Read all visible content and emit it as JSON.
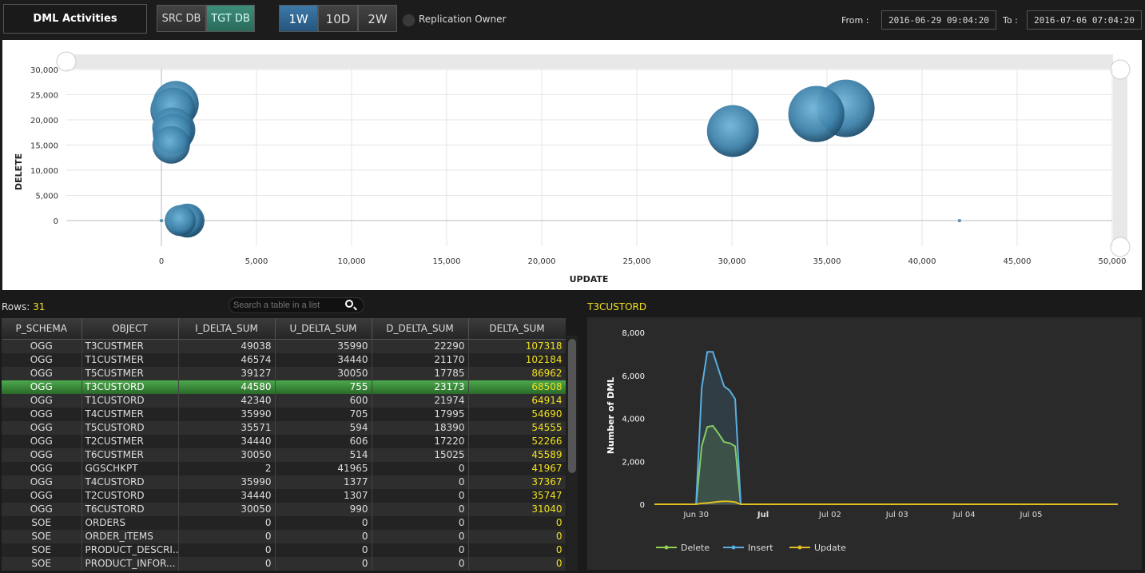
{
  "header": {
    "title": "DML Activities",
    "db_tabs": [
      {
        "label": "SRC DB",
        "active": false
      },
      {
        "label": "TGT DB",
        "active": true
      }
    ],
    "range_tabs": [
      {
        "label": "1W",
        "active": true
      },
      {
        "label": "10D",
        "active": false
      },
      {
        "label": "2W",
        "active": false
      }
    ],
    "replication_owner_label": "Replication Owner",
    "from_label": "From :",
    "from_value": "2016-06-29 09:04:20",
    "to_label": "To :",
    "to_value": "2016-07-06 07:04:20"
  },
  "chart_data": [
    {
      "type": "scatter",
      "xlabel": "UPDATE",
      "ylabel": "DELETE",
      "xlim": [
        -5000,
        50000
      ],
      "ylim": [
        -5000,
        30000
      ],
      "x_ticks": [
        0,
        5000,
        10000,
        15000,
        20000,
        25000,
        30000,
        35000,
        40000,
        45000,
        50000
      ],
      "x_tick_labels": [
        "0",
        "5,000",
        "10,000",
        "15,000",
        "20,000",
        "25,000",
        "30,000",
        "35,000",
        "40,000",
        "45,000",
        "50,000"
      ],
      "y_ticks": [
        0,
        5000,
        10000,
        15000,
        20000,
        25000,
        30000
      ],
      "y_tick_labels": [
        "0",
        "5,000",
        "10,000",
        "15,000",
        "20,000",
        "25,000",
        "30,000"
      ],
      "bubble_color": "#4a90b8",
      "points": [
        {
          "x": 35990,
          "y": 22290,
          "size": 107318
        },
        {
          "x": 34440,
          "y": 21170,
          "size": 102184
        },
        {
          "x": 30050,
          "y": 17785,
          "size": 86962
        },
        {
          "x": 755,
          "y": 23173,
          "size": 68508
        },
        {
          "x": 600,
          "y": 21974,
          "size": 64914
        },
        {
          "x": 705,
          "y": 17995,
          "size": 54690
        },
        {
          "x": 594,
          "y": 18390,
          "size": 54555
        },
        {
          "x": 606,
          "y": 17220,
          "size": 52266
        },
        {
          "x": 514,
          "y": 15025,
          "size": 45589
        },
        {
          "x": 41965,
          "y": 0,
          "size": 41967
        },
        {
          "x": 1377,
          "y": 0,
          "size": 37367
        },
        {
          "x": 1307,
          "y": 0,
          "size": 35747
        },
        {
          "x": 990,
          "y": 0,
          "size": 31040
        },
        {
          "x": 0,
          "y": 0,
          "size": 0
        }
      ]
    },
    {
      "type": "line",
      "title": "T3CUSTORD",
      "ylabel": "Number of DML",
      "ylim": [
        0,
        8000
      ],
      "y_ticks": [
        0,
        2000,
        4000,
        6000,
        8000
      ],
      "y_tick_labels": [
        "0",
        "2,000",
        "4,000",
        "6,000",
        "8,000"
      ],
      "x_range_days": [
        "2016-06-29 09:04",
        "2016-07-06 07:04"
      ],
      "x_tick_labels": [
        "Jun 30",
        "Jul",
        "Jul 02",
        "Jul 03",
        "Jul 04",
        "Jul 05"
      ],
      "x_ticks": [
        "2016-06-30",
        "2016-07-01",
        "2016-07-02",
        "2016-07-03",
        "2016-07-04",
        "2016-07-05"
      ],
      "series": [
        {
          "name": "Delete",
          "color": "#8fd14f",
          "x": [
            "2016-06-29 09:04",
            "2016-06-30 00:00",
            "2016-06-30 02:00",
            "2016-06-30 04:00",
            "2016-06-30 06:00",
            "2016-06-30 08:00",
            "2016-06-30 10:00",
            "2016-06-30 12:00",
            "2016-06-30 14:00",
            "2016-06-30 16:00",
            "2016-07-01 00:00",
            "2016-07-06 07:04"
          ],
          "values": [
            0,
            0,
            2700,
            3600,
            3650,
            3300,
            2900,
            2850,
            2700,
            0,
            0,
            0
          ]
        },
        {
          "name": "Insert",
          "color": "#5aaee0",
          "x": [
            "2016-06-29 09:04",
            "2016-06-30 00:00",
            "2016-06-30 02:00",
            "2016-06-30 04:00",
            "2016-06-30 06:00",
            "2016-06-30 08:00",
            "2016-06-30 10:00",
            "2016-06-30 12:00",
            "2016-06-30 14:00",
            "2016-06-30 16:00",
            "2016-07-01 00:00",
            "2016-07-06 07:04"
          ],
          "values": [
            0,
            0,
            5400,
            7100,
            7100,
            6300,
            5500,
            5300,
            4900,
            0,
            0,
            0
          ]
        },
        {
          "name": "Update",
          "color": "#e0c020",
          "x": [
            "2016-06-29 09:04",
            "2016-06-30 00:00",
            "2016-06-30 02:00",
            "2016-06-30 04:00",
            "2016-06-30 06:00",
            "2016-06-30 08:00",
            "2016-06-30 10:00",
            "2016-06-30 12:00",
            "2016-06-30 14:00",
            "2016-06-30 16:00",
            "2016-07-01 00:00",
            "2016-07-06 07:04"
          ],
          "values": [
            0,
            0,
            40,
            60,
            90,
            120,
            140,
            130,
            100,
            0,
            0,
            0
          ]
        }
      ],
      "legend": "bottom-left"
    }
  ],
  "table": {
    "rows_label": "Rows:",
    "rows_count": "31",
    "search_placeholder": "Search a table in a list",
    "columns": [
      "P_SCHEMA",
      "OBJECT",
      "I_DELTA_SUM",
      "U_DELTA_SUM",
      "D_DELTA_SUM",
      "DELTA_SUM"
    ],
    "selected_index": 3,
    "rows": [
      [
        "OGG",
        "T3CUSTMER",
        "49038",
        "35990",
        "22290",
        "107318"
      ],
      [
        "OGG",
        "T1CUSTMER",
        "46574",
        "34440",
        "21170",
        "102184"
      ],
      [
        "OGG",
        "T5CUSTMER",
        "39127",
        "30050",
        "17785",
        "86962"
      ],
      [
        "OGG",
        "T3CUSTORD",
        "44580",
        "755",
        "23173",
        "68508"
      ],
      [
        "OGG",
        "T1CUSTORD",
        "42340",
        "600",
        "21974",
        "64914"
      ],
      [
        "OGG",
        "T4CUSTMER",
        "35990",
        "705",
        "17995",
        "54690"
      ],
      [
        "OGG",
        "T5CUSTORD",
        "35571",
        "594",
        "18390",
        "54555"
      ],
      [
        "OGG",
        "T2CUSTMER",
        "34440",
        "606",
        "17220",
        "52266"
      ],
      [
        "OGG",
        "T6CUSTMER",
        "30050",
        "514",
        "15025",
        "45589"
      ],
      [
        "OGG",
        "GGSCHKPT",
        "2",
        "41965",
        "0",
        "41967"
      ],
      [
        "OGG",
        "T4CUSTORD",
        "35990",
        "1377",
        "0",
        "37367"
      ],
      [
        "OGG",
        "T2CUSTORD",
        "34440",
        "1307",
        "0",
        "35747"
      ],
      [
        "OGG",
        "T6CUSTORD",
        "30050",
        "990",
        "0",
        "31040"
      ],
      [
        "SOE",
        "ORDERS",
        "0",
        "0",
        "0",
        "0"
      ],
      [
        "SOE",
        "ORDER_ITEMS",
        "0",
        "0",
        "0",
        "0"
      ],
      [
        "SOE",
        "PRODUCT_DESCRI...",
        "0",
        "0",
        "0",
        "0"
      ],
      [
        "SOE",
        "PRODUCT_INFOR...",
        "0",
        "0",
        "0",
        "0"
      ]
    ]
  },
  "detail_title": "T3CUSTORD"
}
